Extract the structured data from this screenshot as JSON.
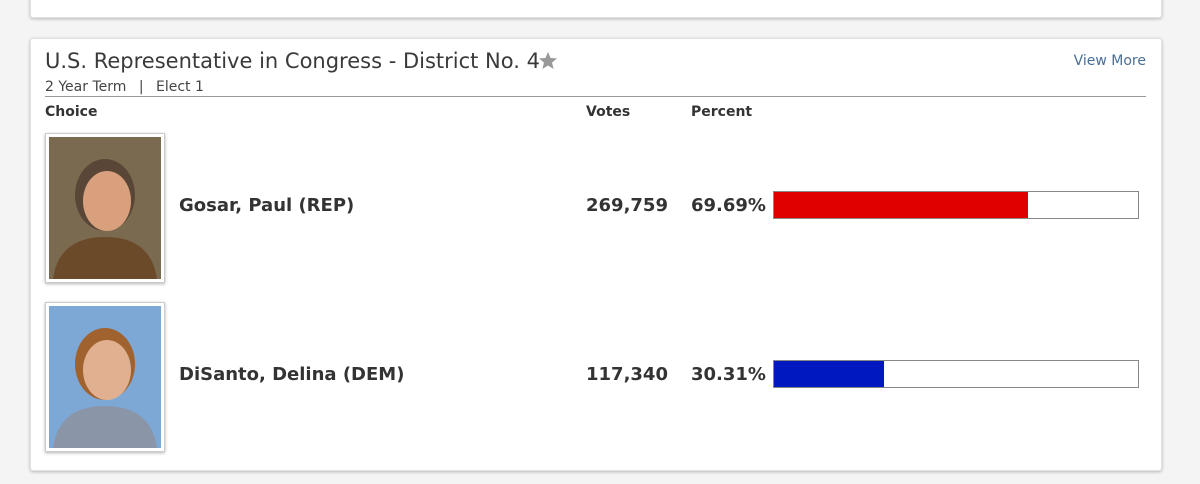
{
  "contest": {
    "title": "U.S. Representative in Congress - District No. 4",
    "term": "2 Year Term",
    "separator": "|",
    "elect": "Elect 1",
    "link": "View More",
    "columns": [
      "Choice",
      "Votes",
      "Percent"
    ],
    "candidates": [
      {
        "name": "Gosar, Paul (REP)",
        "votes": "269,759",
        "percent": {
          "value": 69.69,
          "label": "69.69%"
        },
        "color": "#e00000"
      },
      {
        "name": "DiSanto, Delina (DEM)",
        "votes": "117,340",
        "percent": {
          "value": 30.31,
          "label": "30.31%"
        },
        "color": "#0018c0"
      }
    ]
  }
}
